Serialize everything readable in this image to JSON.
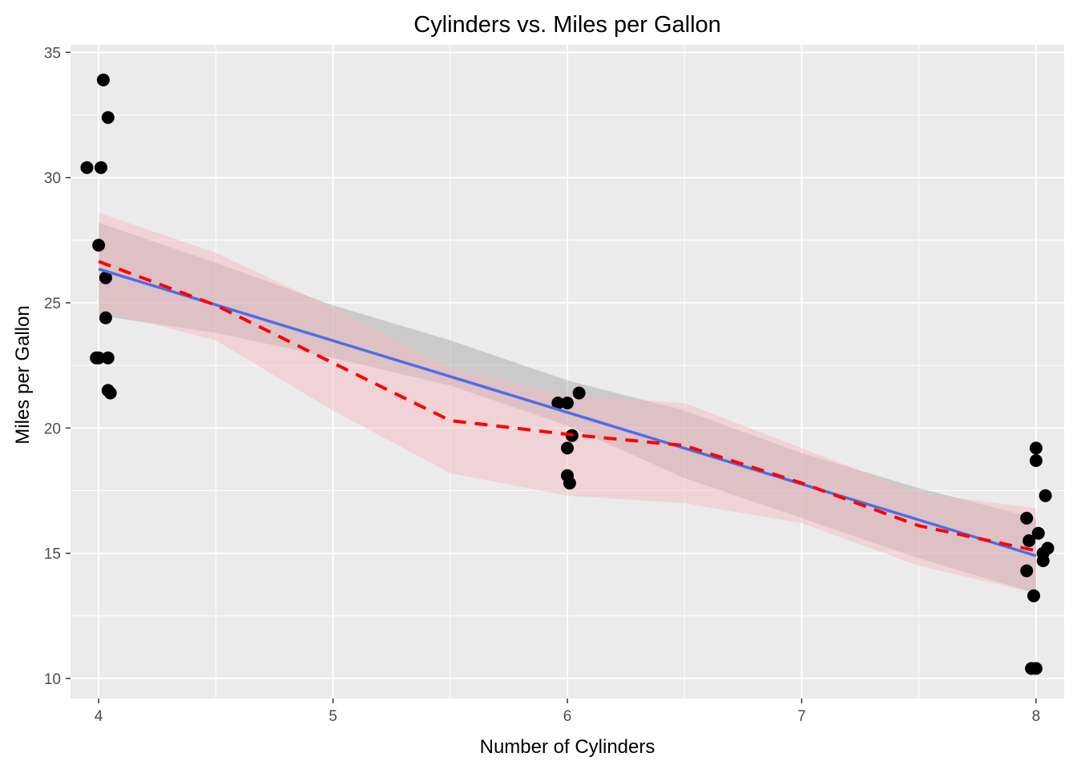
{
  "chart_data": {
    "type": "scatter",
    "title": "Cylinders vs. Miles per Gallon",
    "xlabel": "Number of Cylinders",
    "ylabel": "Miles per Gallon",
    "xlim": [
      3.88,
      8.12
    ],
    "ylim": [
      9.2,
      35.3
    ],
    "x_ticks": [
      4,
      5,
      6,
      7,
      8
    ],
    "x_tick_labels": [
      "4",
      "5",
      "6",
      "7",
      "8"
    ],
    "y_ticks": [
      10,
      15,
      20,
      25,
      30,
      35
    ],
    "y_tick_labels": [
      "10",
      "15",
      "20",
      "25",
      "30",
      "35"
    ],
    "grid": true,
    "background": "#ebebeb",
    "points": {
      "color": "#000000",
      "x": [
        3.95,
        4.01,
        4.02,
        4.04,
        4.0,
        4.03,
        4.03,
        3.99,
        4.04,
        4.05,
        4.04,
        4.0,
        5.96,
        6.0,
        6.05,
        6.02,
        6.0,
        6.0,
        6.01,
        8.0,
        8.0,
        8.04,
        8.01,
        7.96,
        7.97,
        8.05,
        8.03,
        8.03,
        7.96,
        7.99,
        7.98,
        8.0
      ],
      "y": [
        30.4,
        30.4,
        33.9,
        32.4,
        27.3,
        26.0,
        24.4,
        22.8,
        22.8,
        21.4,
        21.5,
        22.8,
        21.0,
        21.0,
        21.4,
        19.7,
        19.2,
        18.1,
        17.8,
        19.2,
        18.7,
        17.3,
        15.8,
        16.4,
        15.5,
        15.2,
        15.0,
        14.7,
        14.3,
        13.3,
        10.4,
        10.4
      ]
    },
    "series": [
      {
        "type": "linear-fit",
        "color": "#4c6ee6",
        "fill": "#999999",
        "line": "solid",
        "x": [
          4,
          8
        ],
        "y": [
          26.35,
          14.9
        ],
        "ci_x": [
          4,
          4.5,
          5,
          5.5,
          6,
          6.5,
          7,
          7.5,
          8
        ],
        "ci_lower": [
          24.5,
          23.8,
          22.8,
          21.7,
          20.1,
          18.0,
          16.4,
          14.8,
          13.4
        ],
        "ci_upper": [
          28.2,
          26.6,
          24.9,
          23.5,
          21.9,
          20.7,
          19.0,
          17.6,
          16.4
        ]
      },
      {
        "type": "loess-fit",
        "color": "#ff0000",
        "fill": "#f4b6be",
        "line": "dashed",
        "x": [
          4,
          4.5,
          5,
          5.5,
          6,
          6.5,
          7,
          7.5,
          8
        ],
        "y": [
          26.65,
          24.9,
          22.6,
          20.3,
          19.75,
          19.3,
          17.8,
          16.1,
          15.1
        ],
        "ci_x": [
          4,
          4.5,
          5,
          5.5,
          6,
          6.5,
          7,
          7.5,
          8
        ],
        "ci_lower": [
          24.7,
          23.5,
          20.7,
          18.2,
          17.3,
          17.0,
          16.2,
          14.5,
          13.4
        ],
        "ci_upper": [
          28.6,
          27.0,
          24.8,
          22.4,
          21.3,
          21.0,
          19.2,
          17.4,
          16.8
        ]
      }
    ]
  }
}
